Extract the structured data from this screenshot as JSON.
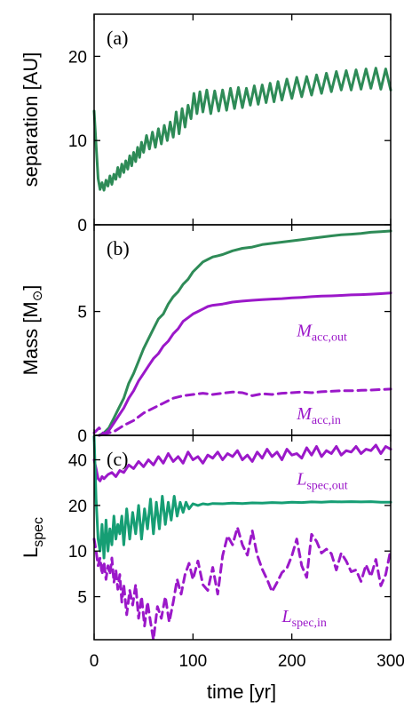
{
  "colors": {
    "green": "#2e8b57",
    "teal": "#169e74",
    "purple": "#9b18c9",
    "frame": "#000000"
  },
  "xaxis": {
    "label": "time [yr]",
    "range": [
      0,
      300
    ],
    "ticks": [
      0,
      100,
      200,
      300
    ],
    "tick_labels": [
      "0",
      "100",
      "200",
      "300"
    ]
  },
  "chart_data": [
    {
      "type": "line",
      "panel_label": "(a)",
      "ylabel": "separation [AU]",
      "xlim": [
        0,
        300
      ],
      "ylim": [
        0,
        25
      ],
      "yticks": [
        0,
        10,
        20
      ],
      "ytick_labels": [
        "0",
        "10",
        "20"
      ],
      "series": [
        {
          "color": "#2e8b57",
          "style": "solid",
          "x": [
            0,
            2,
            4,
            6,
            8,
            10,
            12,
            14,
            16,
            18,
            20,
            22,
            24,
            26,
            28,
            30,
            32,
            34,
            36,
            38,
            40,
            42,
            44,
            46,
            48,
            50,
            53,
            56,
            59,
            62,
            65,
            68,
            71,
            74,
            77,
            80,
            83,
            86,
            89,
            92,
            95,
            98,
            101,
            104,
            107,
            110,
            114,
            118,
            122,
            126,
            130,
            134,
            138,
            142,
            146,
            150,
            154,
            158,
            162,
            166,
            170,
            174,
            178,
            182,
            186,
            190,
            195,
            200,
            205,
            210,
            215,
            220,
            225,
            230,
            235,
            240,
            245,
            250,
            255,
            260,
            265,
            270,
            275,
            280,
            285,
            290,
            295,
            300
          ],
          "y": [
            13.5,
            9.5,
            5.5,
            4.2,
            5.0,
            4.1,
            5.3,
            4.6,
            5.8,
            4.8,
            6.0,
            5.4,
            6.8,
            5.7,
            7.2,
            6.2,
            7.6,
            6.6,
            8.2,
            7.0,
            8.6,
            7.5,
            9.2,
            8.0,
            9.8,
            8.6,
            10.6,
            9.0,
            11.0,
            9.2,
            11.4,
            9.6,
            11.8,
            10.0,
            12.2,
            10.4,
            13.4,
            10.8,
            13.8,
            11.6,
            14.2,
            12.6,
            15.6,
            13.2,
            15.8,
            13.4,
            16.0,
            13.2,
            15.9,
            13.5,
            16.0,
            13.6,
            16.2,
            13.8,
            16.3,
            13.9,
            16.2,
            14.2,
            16.5,
            14.3,
            16.6,
            14.5,
            16.8,
            14.6,
            17.0,
            14.8,
            17.3,
            15.0,
            17.5,
            15.2,
            17.6,
            15.4,
            17.8,
            15.6,
            18.0,
            15.8,
            18.2,
            16.0,
            18.3,
            16.0,
            18.4,
            16.1,
            18.5,
            16.2,
            18.6,
            16.1,
            18.5,
            16.0
          ]
        }
      ]
    },
    {
      "type": "line",
      "panel_label": "(b)",
      "ylabel": "Mass [M",
      "ylabel_tail": "]",
      "xlim": [
        0,
        300
      ],
      "ylim": [
        0,
        8.5
      ],
      "yticks": [
        0,
        5
      ],
      "ytick_labels": [
        "0",
        "5"
      ],
      "annotations": [
        {
          "text": "M",
          "sub": "acc,out",
          "x": 205,
          "y": 4.0,
          "color": "#9b18c9"
        },
        {
          "text": "M",
          "sub": "acc,in",
          "x": 205,
          "y": 0.65,
          "color": "#9b18c9"
        }
      ],
      "series": [
        {
          "color": "#2e8b57",
          "style": "solid",
          "x": [
            5,
            10,
            15,
            20,
            25,
            30,
            35,
            40,
            45,
            50,
            55,
            60,
            65,
            70,
            75,
            80,
            85,
            90,
            95,
            100,
            105,
            110,
            115,
            120,
            125,
            130,
            140,
            150,
            160,
            170,
            180,
            190,
            200,
            210,
            220,
            230,
            240,
            250,
            260,
            270,
            280,
            290,
            300
          ],
          "y": [
            0.0,
            0.1,
            0.3,
            0.7,
            1.1,
            1.5,
            2.1,
            2.5,
            3.0,
            3.5,
            3.9,
            4.3,
            4.7,
            4.9,
            5.3,
            5.6,
            5.8,
            6.1,
            6.3,
            6.6,
            6.8,
            7.0,
            7.1,
            7.2,
            7.25,
            7.3,
            7.45,
            7.55,
            7.6,
            7.7,
            7.75,
            7.8,
            7.85,
            7.9,
            7.95,
            8.0,
            8.05,
            8.1,
            8.12,
            8.15,
            8.2,
            8.22,
            8.25
          ]
        },
        {
          "color": "#9b18c9",
          "style": "solid",
          "x": [
            5,
            10,
            15,
            20,
            25,
            30,
            35,
            40,
            45,
            50,
            55,
            60,
            65,
            70,
            75,
            80,
            85,
            90,
            95,
            100,
            105,
            110,
            115,
            120,
            130,
            140,
            150,
            160,
            170,
            180,
            190,
            200,
            210,
            220,
            230,
            240,
            250,
            260,
            270,
            280,
            290,
            300
          ],
          "y": [
            0.0,
            0.05,
            0.2,
            0.5,
            0.8,
            1.1,
            1.5,
            1.8,
            2.2,
            2.5,
            2.8,
            3.1,
            3.3,
            3.6,
            3.8,
            4.1,
            4.3,
            4.6,
            4.75,
            4.9,
            5.0,
            5.1,
            5.2,
            5.25,
            5.3,
            5.38,
            5.42,
            5.45,
            5.48,
            5.5,
            5.52,
            5.55,
            5.57,
            5.6,
            5.62,
            5.63,
            5.65,
            5.67,
            5.68,
            5.7,
            5.72,
            5.75
          ]
        },
        {
          "color": "#9b18c9",
          "style": "dashed",
          "x": [
            0,
            5,
            10,
            20,
            30,
            40,
            50,
            60,
            70,
            80,
            90,
            100,
            110,
            120,
            130,
            140,
            150,
            160,
            170,
            180,
            190,
            200,
            210,
            220,
            230,
            240,
            250,
            260,
            270,
            280,
            290,
            300
          ],
          "y": [
            0.1,
            0.3,
            0.05,
            0.15,
            0.4,
            0.6,
            0.9,
            1.1,
            1.3,
            1.5,
            1.6,
            1.65,
            1.7,
            1.65,
            1.7,
            1.75,
            1.72,
            1.6,
            1.68,
            1.65,
            1.7,
            1.72,
            1.75,
            1.72,
            1.76,
            1.78,
            1.8,
            1.8,
            1.82,
            1.83,
            1.85,
            1.87
          ]
        }
      ]
    },
    {
      "type": "line",
      "panel_label": "(c)",
      "ylabel": "L",
      "ylabel_sub": "spec",
      "xlim": [
        0,
        300
      ],
      "ylim": [
        2.6,
        58
      ],
      "yscale": "log",
      "yticks": [
        5,
        10,
        20,
        40
      ],
      "ytick_labels": [
        "5",
        "10",
        "20",
        "40"
      ],
      "annotations": [
        {
          "text": "L",
          "sub": "spec,out",
          "x": 205,
          "y": 27.5,
          "color": "#9b18c9"
        },
        {
          "text": "L",
          "sub": "spec,in",
          "x": 190,
          "y": 3.4,
          "color": "#9b18c9"
        }
      ],
      "series": [
        {
          "color": "#9b18c9",
          "style": "solid",
          "x": [
            0,
            2,
            4,
            6,
            8,
            10,
            14,
            18,
            22,
            26,
            30,
            35,
            40,
            45,
            50,
            55,
            60,
            65,
            70,
            75,
            80,
            85,
            90,
            95,
            100,
            105,
            110,
            115,
            120,
            125,
            130,
            135,
            140,
            145,
            150,
            155,
            160,
            165,
            170,
            175,
            180,
            185,
            190,
            195,
            200,
            205,
            210,
            215,
            220,
            225,
            230,
            235,
            240,
            245,
            250,
            255,
            260,
            265,
            270,
            275,
            280,
            285,
            290,
            295,
            300
          ],
          "y": [
            40,
            35,
            30,
            29,
            31,
            30,
            32,
            33,
            31,
            34,
            33,
            37,
            35,
            39,
            36,
            40,
            37,
            42,
            38,
            44,
            39,
            42,
            38,
            45,
            40,
            42,
            38,
            43,
            41,
            45,
            40,
            44,
            42,
            46,
            40,
            43,
            39,
            45,
            41,
            47,
            42,
            45,
            40,
            47,
            43,
            44,
            41,
            48,
            43,
            49,
            42,
            46,
            44,
            49,
            43,
            46,
            45,
            49,
            44,
            47,
            46,
            50,
            44,
            49,
            47
          ]
        },
        {
          "color": "#169e74",
          "style": "solid",
          "x": [
            0,
            2,
            4,
            6,
            8,
            10,
            12,
            14,
            16,
            18,
            20,
            22,
            24,
            26,
            28,
            30,
            33,
            36,
            39,
            42,
            45,
            48,
            51,
            54,
            57,
            60,
            63,
            66,
            69,
            72,
            75,
            78,
            81,
            84,
            87,
            90,
            93,
            96,
            100,
            105,
            110,
            115,
            120,
            130,
            140,
            150,
            160,
            170,
            180,
            190,
            200,
            210,
            220,
            230,
            240,
            250,
            260,
            270,
            280,
            290,
            300
          ],
          "y": [
            57,
            22,
            12,
            10,
            15,
            9,
            16,
            10,
            14,
            11,
            17,
            12,
            15,
            13,
            17,
            11,
            19,
            12,
            18,
            13,
            20,
            12,
            19,
            14,
            22,
            13,
            21,
            14,
            23,
            15,
            21,
            16,
            23,
            17,
            21,
            18,
            21,
            19,
            20.5,
            20,
            20.5,
            20.3,
            20.6,
            20.5,
            20.7,
            20.6,
            20.8,
            20.7,
            20.9,
            20.8,
            21.0,
            20.9,
            21.1,
            21.0,
            21.2,
            21.1,
            21.2,
            21.1,
            21.2,
            21.0,
            21.0
          ]
        },
        {
          "color": "#9b18c9",
          "style": "dashed",
          "x": [
            0,
            2,
            4,
            6,
            8,
            10,
            12,
            14,
            16,
            18,
            20,
            22,
            24,
            26,
            28,
            30,
            33,
            36,
            39,
            42,
            45,
            48,
            51,
            54,
            57,
            60,
            64,
            68,
            72,
            76,
            80,
            84,
            88,
            92,
            96,
            100,
            105,
            110,
            115,
            120,
            125,
            130,
            135,
            140,
            145,
            150,
            155,
            160,
            165,
            170,
            175,
            180,
            185,
            190,
            195,
            200,
            205,
            210,
            215,
            220,
            225,
            230,
            235,
            240,
            245,
            250,
            255,
            260,
            265,
            270,
            275,
            280,
            285,
            290,
            295,
            300
          ],
          "y": [
            12,
            10,
            8,
            9,
            7,
            8.5,
            6.5,
            8,
            7,
            9,
            6.2,
            7.5,
            5.6,
            7,
            4.6,
            6,
            3.8,
            5.5,
            4.4,
            6,
            3.6,
            5,
            3.2,
            4.6,
            3.4,
            2.6,
            4.3,
            3.6,
            5,
            3.4,
            4.6,
            6.5,
            5.2,
            7,
            8.3,
            6.5,
            8.6,
            6,
            5.5,
            7.8,
            5.2,
            9.3,
            12.6,
            11,
            14.3,
            11,
            9.4,
            13.6,
            9.4,
            7.6,
            6.5,
            5.4,
            6.2,
            7.2,
            7.7,
            9.3,
            12,
            8,
            6.7,
            12.9,
            11.6,
            9.7,
            10.3,
            9.6,
            7.5,
            9.7,
            8.6,
            7.3,
            7.5,
            6.3,
            8.1,
            6.8,
            8.8,
            5.9,
            7,
            10.2
          ]
        }
      ]
    }
  ]
}
